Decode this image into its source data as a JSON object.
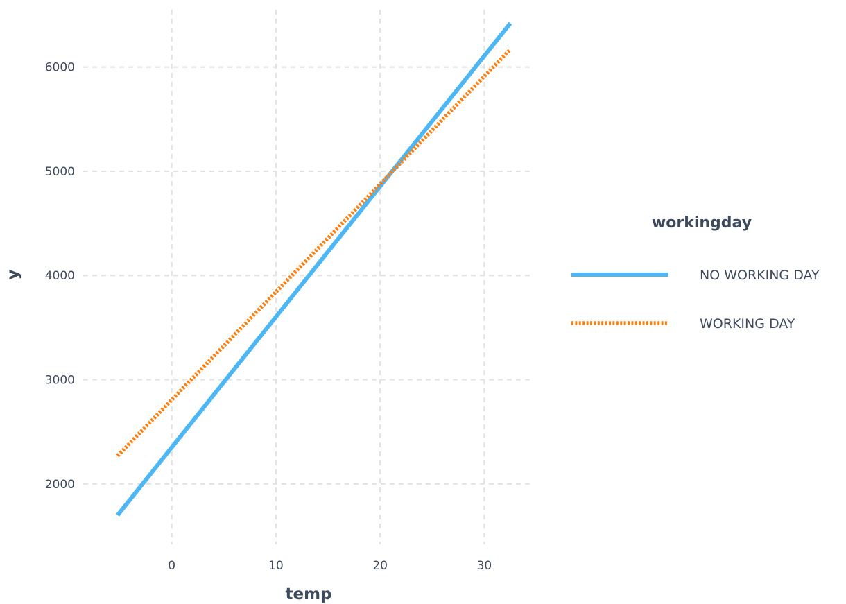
{
  "chart_data": {
    "type": "line",
    "title": "",
    "xlabel": "temp",
    "ylabel": "y",
    "xlim": [
      -8.5,
      34.5
    ],
    "ylim": [
      1420,
      6550
    ],
    "x_ticks": [
      0,
      10,
      20,
      30
    ],
    "y_ticks": [
      2000,
      3000,
      4000,
      5000,
      6000
    ],
    "grid": true,
    "legend": {
      "title": "workingday",
      "placement": "right"
    },
    "series": [
      {
        "name": "NO WORKING DAY",
        "x": [
          -5.2,
          32.5
        ],
        "y": [
          1700,
          6420
        ],
        "color": "#4db6f5",
        "style": "solid"
      },
      {
        "name": "WORKING DAY",
        "x": [
          -5.2,
          32.5
        ],
        "y": [
          2270,
          6170
        ],
        "color": "#ff7f0e",
        "style": "dotted"
      }
    ]
  }
}
